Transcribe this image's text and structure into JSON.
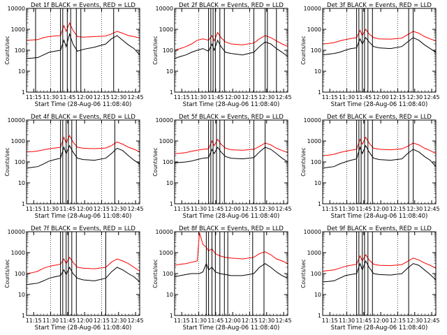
{
  "figure": {
    "xlabel": "Start Time (28-Aug-06 11:08:40)",
    "ylabel": "Counts/sec",
    "x_tick_labels": [
      "11:15",
      "11:30",
      "11:45",
      "12:00",
      "12:15",
      "12:30",
      "12:45"
    ],
    "y_tick_labels": [
      "1",
      "10",
      "100",
      "1000",
      "10000"
    ],
    "colors": {
      "events": "#000000",
      "lld": "#ff0000"
    }
  },
  "chart_data": [
    {
      "type": "line",
      "title": "Det 1f BLACK = Events, RED = LLD",
      "x_unit": "minutes since 11:08:40",
      "ylim": [
        1,
        10000
      ],
      "yscale": "log",
      "vertical_lines": [
        8,
        30,
        32,
        36,
        39,
        44,
        48,
        77
      ],
      "series": [
        {
          "name": "Events",
          "x": [
            0,
            5,
            10,
            15,
            20,
            25,
            30,
            33,
            35,
            38,
            41,
            45,
            50,
            60,
            70,
            75,
            80,
            85,
            90,
            95,
            100
          ],
          "values": [
            40,
            42,
            45,
            60,
            80,
            90,
            100,
            300,
            150,
            600,
            200,
            90,
            110,
            140,
            200,
            350,
            500,
            300,
            180,
            120,
            60
          ]
        },
        {
          "name": "LLD",
          "x": [
            0,
            5,
            10,
            15,
            20,
            25,
            30,
            33,
            35,
            38,
            41,
            45,
            50,
            60,
            70,
            75,
            80,
            85,
            90,
            95,
            100
          ],
          "values": [
            300,
            310,
            320,
            400,
            450,
            480,
            500,
            1500,
            800,
            2000,
            900,
            450,
            420,
            450,
            480,
            600,
            800,
            650,
            500,
            450,
            380
          ]
        }
      ]
    },
    {
      "type": "line",
      "title": "Det 2f BLACK = Events, RED = LLD",
      "x_unit": "minutes since 11:08:40",
      "ylim": [
        1,
        10000
      ],
      "yscale": "log",
      "vertical_lines": [
        30,
        32,
        34,
        36,
        40,
        44,
        70,
        80,
        82,
        90
      ],
      "series": [
        {
          "name": "Events",
          "x": [
            0,
            5,
            10,
            15,
            20,
            25,
            30,
            33,
            35,
            38,
            41,
            45,
            50,
            60,
            70,
            75,
            80,
            85,
            90,
            95,
            100
          ],
          "values": [
            40,
            50,
            60,
            80,
            100,
            120,
            90,
            200,
            100,
            300,
            150,
            80,
            70,
            60,
            80,
            150,
            250,
            200,
            120,
            80,
            50
          ]
        },
        {
          "name": "LLD",
          "x": [
            0,
            5,
            10,
            15,
            20,
            25,
            30,
            33,
            35,
            38,
            41,
            45,
            50,
            60,
            70,
            75,
            80,
            85,
            90,
            95,
            100
          ],
          "values": [
            100,
            120,
            150,
            200,
            300,
            350,
            300,
            500,
            280,
            700,
            400,
            250,
            200,
            180,
            220,
            350,
            500,
            400,
            280,
            200,
            150
          ]
        }
      ]
    },
    {
      "type": "line",
      "title": "Det 3f BLACK = Events, RED = LLD",
      "x_unit": "minutes since 11:08:40",
      "ylim": [
        1,
        10000
      ],
      "yscale": "log",
      "vertical_lines": [
        30,
        32,
        35,
        37,
        40,
        44,
        76,
        80
      ],
      "series": [
        {
          "name": "Events",
          "x": [
            0,
            5,
            10,
            15,
            20,
            25,
            30,
            33,
            35,
            38,
            41,
            45,
            50,
            60,
            70,
            75,
            80,
            85,
            90,
            95,
            100
          ],
          "values": [
            60,
            65,
            70,
            80,
            100,
            120,
            130,
            350,
            200,
            400,
            250,
            150,
            130,
            120,
            150,
            250,
            400,
            300,
            180,
            120,
            80
          ]
        },
        {
          "name": "LLD",
          "x": [
            0,
            5,
            10,
            15,
            20,
            25,
            30,
            33,
            35,
            38,
            41,
            45,
            50,
            60,
            70,
            75,
            80,
            85,
            90,
            95,
            100
          ],
          "values": [
            200,
            210,
            230,
            280,
            320,
            360,
            400,
            900,
            500,
            1000,
            600,
            400,
            350,
            340,
            380,
            550,
            800,
            650,
            450,
            350,
            280
          ]
        }
      ]
    },
    {
      "type": "line",
      "title": "Det 4f BLACK = Events, RED = LLD",
      "x_unit": "minutes since 11:08:40",
      "ylim": [
        1,
        10000
      ],
      "yscale": "log",
      "vertical_lines": [
        30,
        32,
        35,
        37,
        40,
        44,
        78
      ],
      "series": [
        {
          "name": "Events",
          "x": [
            0,
            5,
            10,
            15,
            20,
            25,
            30,
            33,
            35,
            38,
            41,
            45,
            50,
            60,
            70,
            75,
            80,
            85,
            90,
            95,
            100
          ],
          "values": [
            50,
            55,
            60,
            80,
            110,
            130,
            150,
            500,
            250,
            600,
            300,
            150,
            130,
            120,
            150,
            250,
            450,
            350,
            200,
            120,
            80
          ]
        },
        {
          "name": "LLD",
          "x": [
            0,
            5,
            10,
            15,
            20,
            25,
            30,
            33,
            35,
            38,
            41,
            45,
            50,
            60,
            70,
            75,
            80,
            85,
            90,
            95,
            100
          ],
          "values": [
            300,
            310,
            330,
            380,
            420,
            460,
            500,
            1500,
            800,
            1800,
            900,
            500,
            450,
            430,
            460,
            600,
            900,
            700,
            500,
            400,
            300
          ]
        }
      ]
    },
    {
      "type": "line",
      "title": "Det 5f BLACK = Events, RED = LLD",
      "x_unit": "minutes since 11:08:40",
      "ylim": [
        1,
        10000
      ],
      "yscale": "log",
      "vertical_lines": [
        30,
        32,
        34,
        37,
        40,
        44,
        70,
        80
      ],
      "series": [
        {
          "name": "Events",
          "x": [
            0,
            5,
            10,
            15,
            20,
            25,
            30,
            33,
            35,
            38,
            41,
            45,
            50,
            60,
            70,
            75,
            80,
            85,
            90,
            95,
            100
          ],
          "values": [
            90,
            95,
            100,
            110,
            130,
            150,
            160,
            400,
            250,
            500,
            300,
            180,
            150,
            140,
            160,
            300,
            500,
            400,
            250,
            150,
            100
          ]
        },
        {
          "name": "LLD",
          "x": [
            0,
            5,
            10,
            15,
            20,
            25,
            30,
            33,
            35,
            38,
            41,
            45,
            50,
            60,
            70,
            75,
            80,
            85,
            90,
            95,
            100
          ],
          "values": [
            250,
            260,
            280,
            320,
            360,
            400,
            420,
            1000,
            600,
            1200,
            700,
            450,
            380,
            360,
            400,
            550,
            800,
            650,
            450,
            350,
            280
          ]
        }
      ]
    },
    {
      "type": "line",
      "title": "Det 6f BLACK = Events, RED = LLD",
      "x_unit": "minutes since 11:08:40",
      "ylim": [
        1,
        10000
      ],
      "yscale": "log",
      "vertical_lines": [
        30,
        32,
        34,
        37,
        40,
        44,
        76,
        80
      ],
      "series": [
        {
          "name": "Events",
          "x": [
            0,
            5,
            10,
            15,
            20,
            25,
            30,
            33,
            35,
            38,
            41,
            45,
            50,
            60,
            70,
            75,
            80,
            85,
            90,
            95,
            100
          ],
          "values": [
            50,
            55,
            60,
            80,
            100,
            120,
            140,
            500,
            250,
            600,
            300,
            150,
            130,
            120,
            140,
            250,
            400,
            300,
            180,
            120,
            60
          ]
        },
        {
          "name": "LLD",
          "x": [
            0,
            5,
            10,
            15,
            20,
            25,
            30,
            33,
            35,
            38,
            41,
            45,
            50,
            60,
            70,
            75,
            80,
            85,
            90,
            95,
            100
          ],
          "values": [
            200,
            210,
            230,
            280,
            320,
            360,
            400,
            1200,
            700,
            1500,
            800,
            450,
            400,
            380,
            420,
            550,
            800,
            650,
            450,
            350,
            250
          ]
        }
      ]
    },
    {
      "type": "line",
      "title": "Det 7f BLACK = Events, RED = LLD",
      "x_unit": "minutes since 11:08:40",
      "ylim": [
        1,
        10000
      ],
      "yscale": "log",
      "vertical_lines": [
        30,
        32,
        35,
        37,
        40,
        44,
        70
      ],
      "series": [
        {
          "name": "Events",
          "x": [
            0,
            5,
            10,
            15,
            20,
            25,
            30,
            33,
            35,
            38,
            41,
            45,
            50,
            60,
            70,
            75,
            80,
            85,
            90,
            95,
            100
          ],
          "values": [
            30,
            32,
            35,
            45,
            60,
            70,
            80,
            150,
            90,
            200,
            100,
            60,
            50,
            45,
            60,
            120,
            200,
            150,
            100,
            70,
            40
          ]
        },
        {
          "name": "LLD",
          "x": [
            0,
            5,
            10,
            15,
            20,
            25,
            30,
            33,
            35,
            38,
            41,
            45,
            50,
            60,
            70,
            75,
            80,
            85,
            90,
            95,
            100
          ],
          "values": [
            100,
            110,
            130,
            180,
            220,
            250,
            280,
            500,
            300,
            600,
            350,
            200,
            180,
            170,
            200,
            350,
            500,
            400,
            300,
            200,
            130
          ]
        }
      ]
    },
    {
      "type": "line",
      "title": "Det 8f BLACK = Events, RED = LLD",
      "x_unit": "minutes since 11:08:40",
      "ylim": [
        1,
        10000
      ],
      "yscale": "log",
      "vertical_lines": [
        28,
        30,
        33,
        36,
        40,
        44,
        47,
        69,
        79
      ],
      "series": [
        {
          "name": "Events",
          "x": [
            0,
            5,
            10,
            15,
            20,
            22,
            25,
            28,
            30,
            33,
            36,
            40,
            45,
            50,
            60,
            70,
            75,
            80,
            85,
            90,
            95,
            100
          ],
          "values": [
            70,
            80,
            90,
            100,
            100,
            100,
            120,
            300,
            150,
            200,
            120,
            100,
            90,
            80,
            80,
            100,
            200,
            300,
            200,
            120,
            80,
            60
          ]
        },
        {
          "name": "LLD",
          "x": [
            0,
            5,
            10,
            15,
            20,
            22,
            25,
            28,
            30,
            33,
            36,
            40,
            45,
            50,
            60,
            70,
            75,
            80,
            85,
            90,
            95,
            100
          ],
          "values": [
            250,
            280,
            300,
            350,
            400,
            9000,
            2500,
            1800,
            1200,
            1500,
            900,
            700,
            600,
            550,
            500,
            600,
            900,
            1100,
            800,
            500,
            400,
            300
          ]
        }
      ]
    },
    {
      "type": "line",
      "title": "Det 9f BLACK = Events, RED = LLD",
      "x_unit": "minutes since 11:08:40",
      "ylim": [
        1,
        10000
      ],
      "yscale": "log",
      "vertical_lines": [
        30,
        32,
        35,
        37,
        40,
        44,
        76
      ],
      "series": [
        {
          "name": "Events",
          "x": [
            0,
            5,
            10,
            15,
            20,
            25,
            30,
            33,
            35,
            38,
            41,
            45,
            50,
            60,
            70,
            75,
            80,
            85,
            90,
            95,
            100
          ],
          "values": [
            40,
            42,
            45,
            60,
            80,
            90,
            100,
            300,
            150,
            400,
            200,
            100,
            90,
            85,
            100,
            180,
            300,
            250,
            150,
            90,
            50
          ]
        },
        {
          "name": "LLD",
          "x": [
            0,
            5,
            10,
            15,
            20,
            25,
            30,
            33,
            35,
            38,
            41,
            45,
            50,
            60,
            70,
            75,
            80,
            85,
            90,
            95,
            100
          ],
          "values": [
            130,
            140,
            150,
            180,
            220,
            250,
            280,
            700,
            400,
            800,
            450,
            280,
            250,
            240,
            270,
            380,
            550,
            450,
            320,
            250,
            180
          ]
        }
      ]
    }
  ]
}
